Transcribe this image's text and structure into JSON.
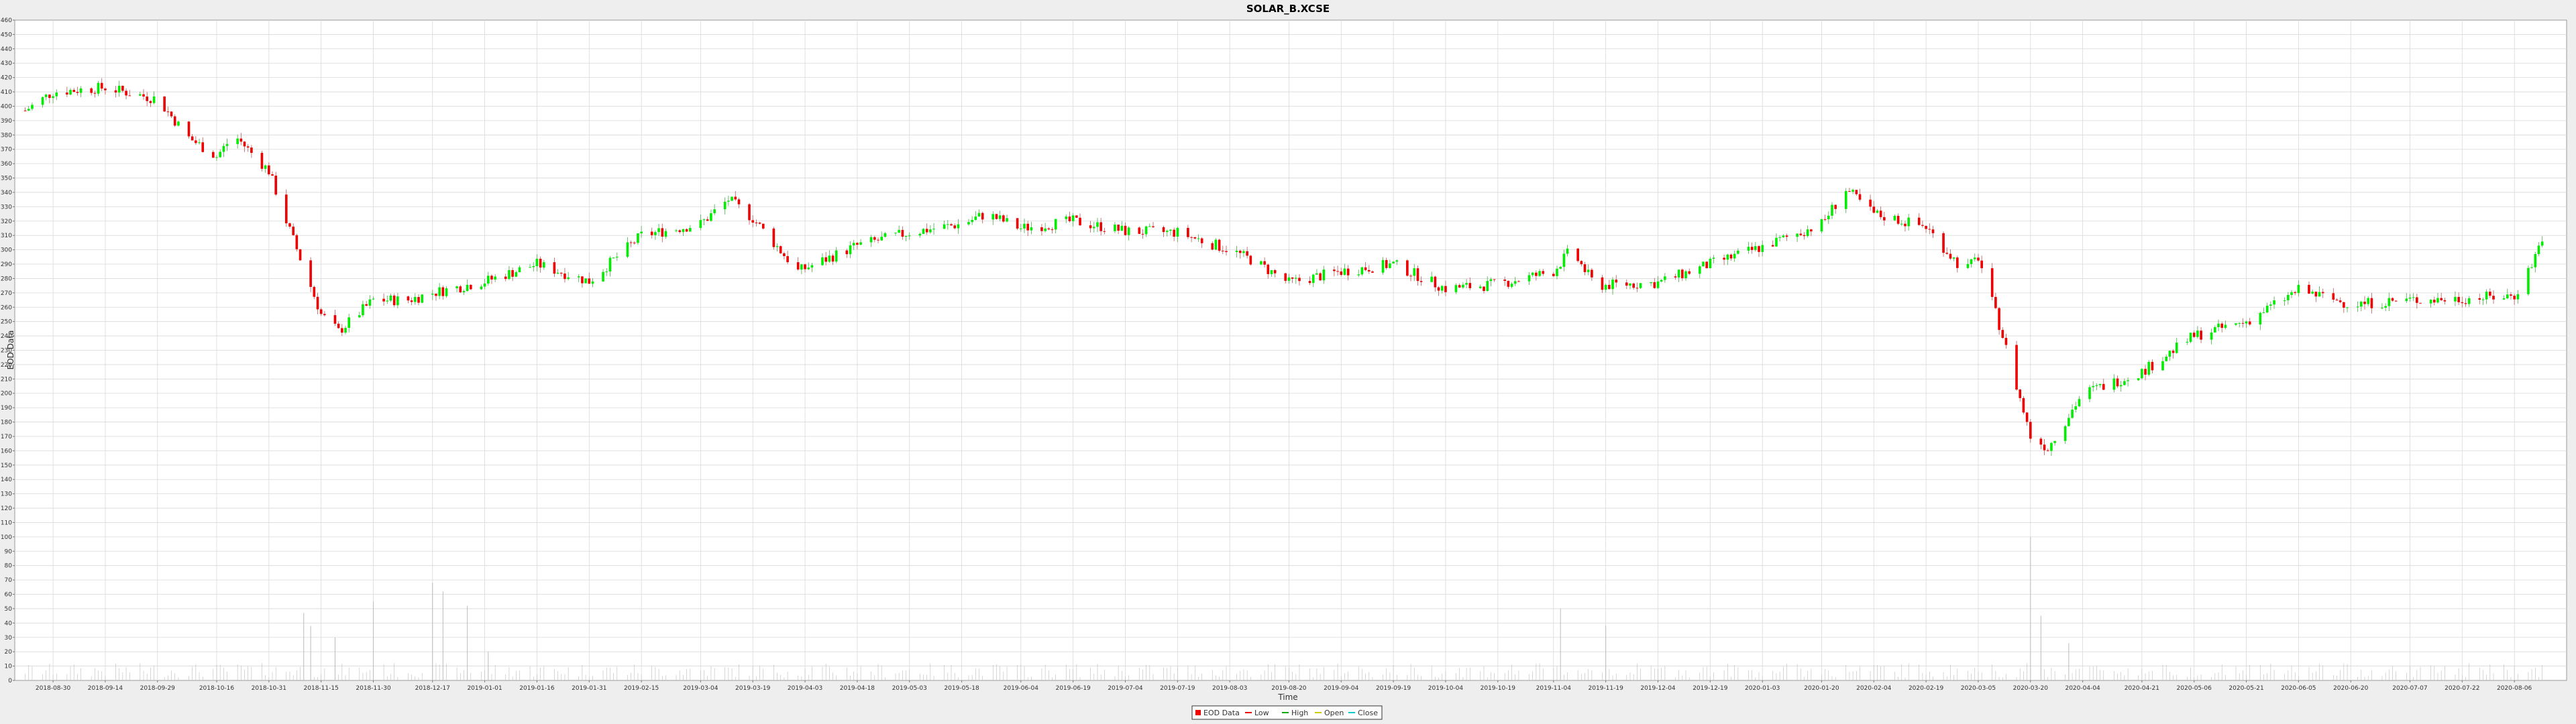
{
  "chart_data": {
    "type": "candlestick",
    "title": "SOLAR_B.XCSE",
    "xlabel": "Time",
    "ylabel": "EOD Data",
    "ylim": [
      0,
      460
    ],
    "y_ticks": [
      0,
      10,
      20,
      30,
      40,
      50,
      60,
      70,
      80,
      90,
      100,
      110,
      120,
      130,
      140,
      150,
      160,
      170,
      180,
      190,
      200,
      210,
      220,
      230,
      240,
      250,
      260,
      270,
      280,
      290,
      300,
      310,
      320,
      330,
      340,
      350,
      360,
      370,
      380,
      390,
      400,
      410,
      420,
      430,
      440,
      450,
      460
    ],
    "x_ticks": [
      "2018-08-30",
      "2018-09-14",
      "2018-09-29",
      "2018-10-16",
      "2018-10-31",
      "2018-11-15",
      "2018-11-30",
      "2018-12-17",
      "2019-01-01",
      "2019-01-16",
      "2019-01-31",
      "2019-02-15",
      "2019-03-04",
      "2019-03-19",
      "2019-04-03",
      "2019-04-18",
      "2019-05-03",
      "2019-05-18",
      "2019-06-04",
      "2019-06-19",
      "2019-07-04",
      "2019-07-19",
      "2019-08-03",
      "2019-08-20",
      "2019-09-04",
      "2019-09-19",
      "2019-10-04",
      "2019-10-19",
      "2019-11-04",
      "2019-11-19",
      "2019-12-04",
      "2019-12-19",
      "2020-01-03",
      "2020-01-20",
      "2020-02-04",
      "2020-02-19",
      "2020-03-05",
      "2020-03-20",
      "2020-04-04",
      "2020-04-21",
      "2020-05-06",
      "2020-05-21",
      "2020-06-05",
      "2020-06-20",
      "2020-07-07",
      "2020-07-22",
      "2020-08-06"
    ],
    "price_path": [
      {
        "x": "2018-08-22",
        "y": 397
      },
      {
        "x": "2018-08-30",
        "y": 410
      },
      {
        "x": "2018-09-14",
        "y": 413
      },
      {
        "x": "2018-09-29",
        "y": 405
      },
      {
        "x": "2018-10-08",
        "y": 378
      },
      {
        "x": "2018-10-16",
        "y": 365
      },
      {
        "x": "2018-10-21",
        "y": 380
      },
      {
        "x": "2018-10-31",
        "y": 355
      },
      {
        "x": "2018-11-05",
        "y": 320
      },
      {
        "x": "2018-11-15",
        "y": 255
      },
      {
        "x": "2018-11-20",
        "y": 243
      },
      {
        "x": "2018-11-30",
        "y": 265
      },
      {
        "x": "2018-12-10",
        "y": 265
      },
      {
        "x": "2018-12-17",
        "y": 270
      },
      {
        "x": "2019-01-01",
        "y": 278
      },
      {
        "x": "2019-01-16",
        "y": 290
      },
      {
        "x": "2019-01-31",
        "y": 278
      },
      {
        "x": "2019-02-15",
        "y": 310
      },
      {
        "x": "2019-03-04",
        "y": 318
      },
      {
        "x": "2019-03-12",
        "y": 335
      },
      {
        "x": "2019-03-19",
        "y": 322
      },
      {
        "x": "2019-04-01",
        "y": 285
      },
      {
        "x": "2019-04-18",
        "y": 303
      },
      {
        "x": "2019-05-03",
        "y": 312
      },
      {
        "x": "2019-05-18",
        "y": 318
      },
      {
        "x": "2019-05-25",
        "y": 325
      },
      {
        "x": "2019-06-04",
        "y": 315
      },
      {
        "x": "2019-06-19",
        "y": 320
      },
      {
        "x": "2019-07-04",
        "y": 313
      },
      {
        "x": "2019-07-19",
        "y": 312
      },
      {
        "x": "2019-08-03",
        "y": 300
      },
      {
        "x": "2019-08-10",
        "y": 292
      },
      {
        "x": "2019-08-20",
        "y": 277
      },
      {
        "x": "2019-09-04",
        "y": 285
      },
      {
        "x": "2019-09-19",
        "y": 290
      },
      {
        "x": "2019-10-04",
        "y": 273
      },
      {
        "x": "2019-10-19",
        "y": 276
      },
      {
        "x": "2019-11-04",
        "y": 285
      },
      {
        "x": "2019-11-09",
        "y": 300
      },
      {
        "x": "2019-11-16",
        "y": 275
      },
      {
        "x": "2019-12-04",
        "y": 277
      },
      {
        "x": "2019-12-19",
        "y": 290
      },
      {
        "x": "2020-01-03",
        "y": 302
      },
      {
        "x": "2020-01-20",
        "y": 318
      },
      {
        "x": "2020-01-27",
        "y": 342
      },
      {
        "x": "2020-02-04",
        "y": 325
      },
      {
        "x": "2020-02-19",
        "y": 316
      },
      {
        "x": "2020-03-01",
        "y": 285
      },
      {
        "x": "2020-03-05",
        "y": 295
      },
      {
        "x": "2020-03-12",
        "y": 240
      },
      {
        "x": "2020-03-20",
        "y": 170
      },
      {
        "x": "2020-03-25",
        "y": 162
      },
      {
        "x": "2020-04-04",
        "y": 200
      },
      {
        "x": "2020-04-21",
        "y": 215
      },
      {
        "x": "2020-05-06",
        "y": 240
      },
      {
        "x": "2020-05-21",
        "y": 250
      },
      {
        "x": "2020-06-05",
        "y": 272
      },
      {
        "x": "2020-06-20",
        "y": 262
      },
      {
        "x": "2020-07-07",
        "y": 265
      },
      {
        "x": "2020-07-22",
        "y": 266
      },
      {
        "x": "2020-08-06",
        "y": 268
      },
      {
        "x": "2020-08-11",
        "y": 290
      },
      {
        "x": "2020-08-15",
        "y": 315
      }
    ],
    "volume_spikes": [
      {
        "x": "2018-11-10",
        "y": 47
      },
      {
        "x": "2018-11-12",
        "y": 38
      },
      {
        "x": "2018-11-19",
        "y": 30
      },
      {
        "x": "2018-11-30",
        "y": 55
      },
      {
        "x": "2018-12-17",
        "y": 68
      },
      {
        "x": "2018-12-20",
        "y": 62
      },
      {
        "x": "2018-12-27",
        "y": 52
      },
      {
        "x": "2019-01-02",
        "y": 20
      },
      {
        "x": "2019-11-06",
        "y": 50
      },
      {
        "x": "2019-11-19",
        "y": 38
      },
      {
        "x": "2020-03-20",
        "y": 100
      },
      {
        "x": "2020-03-23",
        "y": 45
      },
      {
        "x": "2020-03-31",
        "y": 26
      }
    ],
    "legend": [
      "EOD Data",
      "Low",
      "High",
      "Open",
      "Close"
    ],
    "colors": {
      "up": "#00ee00",
      "down": "#ee0000",
      "wick": "#bb5555",
      "volume": "#bbbbbb",
      "grid": "#d9d9d9",
      "background": "#ffffff"
    },
    "grid": true,
    "legend_position": "bottom-center"
  }
}
